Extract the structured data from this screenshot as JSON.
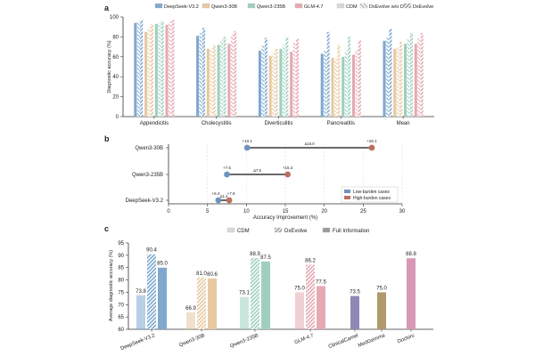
{
  "panel_letters": [
    "a",
    "b",
    "c"
  ],
  "chart_data": [
    {
      "type": "bar",
      "panel": "a",
      "title": "",
      "xlabel": "",
      "ylabel": "Diagnostic accuracy (%)",
      "ylim": [
        0,
        100
      ],
      "yticks": [
        0,
        20,
        40,
        60,
        80,
        100
      ],
      "legend_position": "top",
      "categories": [
        "Appendicitis",
        "Cholecystitis",
        "Diverticulitis",
        "Pancreatitis",
        "Mean"
      ],
      "series": [
        {
          "name": "DeepSeek-V3.2",
          "style": "CDM",
          "color": "#7fa8cf",
          "values": [
            94,
            81,
            66,
            63,
            76
          ]
        },
        {
          "name": "DeepSeek-V3.2",
          "style": "DxEvolve w/o DCP",
          "color": "#7fa8cf",
          "values": [
            95,
            84,
            71,
            66,
            79
          ]
        },
        {
          "name": "DeepSeek-V3.2",
          "style": "DxEvolve",
          "color": "#7fa8cf",
          "values": [
            97,
            89,
            79,
            85,
            88
          ]
        },
        {
          "name": "Qwen3-30B",
          "style": "CDM",
          "color": "#e6c9a1",
          "values": [
            85,
            68,
            61,
            59,
            68
          ]
        },
        {
          "name": "Qwen3-30B",
          "style": "DxEvolve w/o DCP",
          "color": "#e6c9a1",
          "values": [
            89,
            68,
            64,
            58,
            70
          ]
        },
        {
          "name": "Qwen3-30B",
          "style": "DxEvolve",
          "color": "#e6c9a1",
          "values": [
            93,
            72,
            68,
            72,
            75
          ]
        },
        {
          "name": "Qwen3-235B",
          "style": "CDM",
          "color": "#9fcfbf",
          "values": [
            93,
            72,
            68,
            60,
            73
          ]
        },
        {
          "name": "Qwen3-235B",
          "style": "DxEvolve w/o DCP",
          "color": "#9fcfbf",
          "values": [
            94,
            77,
            72,
            66,
            78
          ]
        },
        {
          "name": "Qwen3-235B",
          "style": "DxEvolve",
          "color": "#9fcfbf",
          "values": [
            96,
            80,
            80,
            80,
            84
          ]
        },
        {
          "name": "GLM-4.7",
          "style": "CDM",
          "color": "#e6a9b1",
          "values": [
            92,
            73,
            65,
            62,
            73
          ]
        },
        {
          "name": "GLM-4.7",
          "style": "DxEvolve w/o DCP",
          "color": "#e6a9b1",
          "values": [
            95,
            82,
            74,
            67,
            79
          ]
        },
        {
          "name": "GLM-4.7",
          "style": "DxEvolve",
          "color": "#e6a9b1",
          "values": [
            97,
            86,
            78,
            77,
            84
          ]
        }
      ],
      "legend": [
        "DeepSeek-V3.2",
        "Qwen3-30B",
        "Qwen3-235B",
        "GLM-4.7",
        "CDM",
        "DxEvolve w/o DCP",
        "DxEvolve"
      ]
    },
    {
      "type": "scatter",
      "panel": "b",
      "title": "",
      "xlabel": "Accuracy Improvement (%)",
      "ylabel": "",
      "xlim": [
        0,
        30
      ],
      "xticks": [
        0,
        5,
        10,
        15,
        20,
        25,
        30
      ],
      "legend_position": "bottom-right",
      "legend": [
        "Low-burden cases",
        "High-burden cases"
      ],
      "rows": [
        {
          "model": "Qwen3-30B",
          "low": 10.1,
          "high": 26.1,
          "low_label": "+10.1",
          "high_label": "+26.1",
          "gap_label": "Δ16.0"
        },
        {
          "model": "Qwen3-235B",
          "low": 7.5,
          "high": 15.3,
          "low_label": "+7.5",
          "high_label": "+15.3",
          "gap_label": "Δ7.8"
        },
        {
          "model": "DeepSeek-V3.2",
          "low": 6.4,
          "high": 7.8,
          "low_label": "+6.4",
          "high_label": "+7.8",
          "gap_label": "Δ1.4"
        }
      ]
    },
    {
      "type": "bar",
      "panel": "c",
      "title": "",
      "xlabel": "",
      "ylabel": "Average diagnostic accuracy (%)",
      "ylim": [
        60,
        95
      ],
      "yticks": [
        60,
        65,
        70,
        75,
        80,
        85,
        90,
        95
      ],
      "legend_position": "top",
      "legend": [
        "CDM",
        "DxEvolve",
        "Full Information"
      ],
      "groups": [
        {
          "name": "DeepSeek-V3.2",
          "color": "#7fa8cf",
          "bars": [
            {
              "style": "CDM",
              "value": 73.8,
              "label": "73.8"
            },
            {
              "style": "DxEvolve",
              "value": 90.4,
              "label": "90.4"
            },
            {
              "style": "Full Information",
              "value": 85.0,
              "label": "85.0"
            }
          ]
        },
        {
          "name": "Qwen3-30B",
          "color": "#e6c9a1",
          "bars": [
            {
              "style": "CDM",
              "value": 66.9,
              "label": "66.9"
            },
            {
              "style": "DxEvolve",
              "value": 81.0,
              "label": "81.0"
            },
            {
              "style": "Full Information",
              "value": 80.6,
              "label": "80.6"
            }
          ]
        },
        {
          "name": "Qwen3-235B",
          "color": "#9fcfbf",
          "bars": [
            {
              "style": "CDM",
              "value": 73.1,
              "label": "73.1"
            },
            {
              "style": "DxEvolve",
              "value": 88.9,
              "label": "88.9"
            },
            {
              "style": "Full Information",
              "value": 87.5,
              "label": "87.5"
            }
          ]
        },
        {
          "name": "GLM-4.7",
          "color": "#e6a9b1",
          "bars": [
            {
              "style": "CDM",
              "value": 75.0,
              "label": "75.0"
            },
            {
              "style": "DxEvolve",
              "value": 86.2,
              "label": "86.2"
            },
            {
              "style": "Full Information",
              "value": 77.5,
              "label": "77.5"
            }
          ]
        },
        {
          "name": "ClinicalCamel",
          "color": "#8f88b5",
          "bars": [
            {
              "style": "Full Information",
              "value": 73.5,
              "label": "73.5"
            }
          ]
        },
        {
          "name": "MedGemma",
          "color": "#b09a6c",
          "bars": [
            {
              "style": "Full Information",
              "value": 75.0,
              "label": "75.0"
            }
          ]
        },
        {
          "name": "Doctors",
          "color": "#d797b5",
          "bars": [
            {
              "style": "Full Information",
              "value": 88.8,
              "label": "88.8"
            }
          ]
        }
      ]
    }
  ]
}
